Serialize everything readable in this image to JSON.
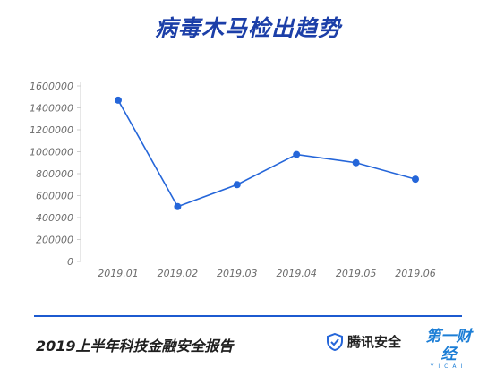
{
  "header": {
    "title": "病毒木马检出趋势"
  },
  "footer": {
    "report_title": "2019上半年科技金融安全报告",
    "brand_tencent": "腾讯安全",
    "brand_yicai_cn": "第一财经",
    "brand_yicai_en": "YICAI"
  },
  "colors": {
    "title": "#1c3fa8",
    "line": "#2566d9",
    "point": "#2566d9",
    "divider": "#1c5ad0",
    "axis_text": "#6b6b6b",
    "brand_yicai": "#1c7ed6"
  },
  "icons": {
    "tencent_logo": "shield-check-icon"
  },
  "chart_data": {
    "type": "line",
    "title": "病毒木马检出趋势",
    "xlabel": "",
    "ylabel": "",
    "categories": [
      "2019.01",
      "2019.02",
      "2019.03",
      "2019.04",
      "2019.05",
      "2019.06"
    ],
    "series": [
      {
        "values": [
          1470000,
          500000,
          700000,
          975000,
          900000,
          750000
        ]
      }
    ],
    "yticks": [
      "0",
      "200000",
      "400000",
      "600000",
      "800000",
      "1000000",
      "1200000",
      "1400000",
      "1600000"
    ],
    "ylim": [
      0,
      1600000
    ],
    "grid": false,
    "legend": "none"
  }
}
